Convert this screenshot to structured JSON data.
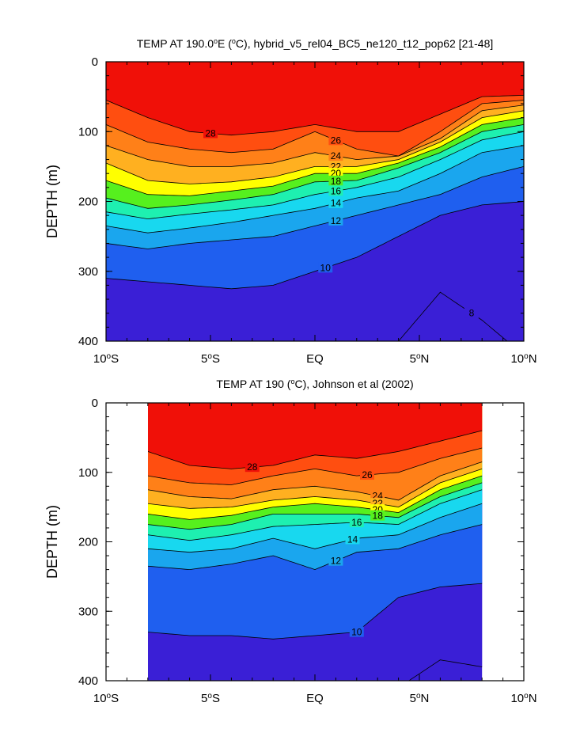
{
  "chart_data": [
    {
      "type": "heatmap",
      "title_parts": [
        "TEMP AT 190.0",
        "o",
        "E (",
        "o",
        "C), hybrid_v5_rel04_BC5_ne120_t12_pop62 [21-48]"
      ],
      "ylabel": "DEPTH (m)",
      "xlim": [
        -10,
        10
      ],
      "ylim": [
        400,
        0
      ],
      "data_xlim": [
        -10,
        10
      ],
      "y_ticks": [
        0,
        100,
        200,
        300,
        400
      ],
      "x_ticks": [
        {
          "value": -10,
          "parts": [
            "10",
            "o",
            "S"
          ]
        },
        {
          "value": -5,
          "parts": [
            "5",
            "o",
            "S"
          ]
        },
        {
          "value": 0,
          "parts": [
            "EQ",
            "",
            ""
          ]
        },
        {
          "value": 5,
          "parts": [
            "5",
            "o",
            "N"
          ]
        },
        {
          "value": 10,
          "parts": [
            "10",
            "o",
            "N"
          ]
        }
      ],
      "x": [
        -10,
        -8,
        -6,
        -4,
        -2,
        0,
        2,
        4,
        6,
        8,
        10
      ],
      "isotherm_depths": [
        {
          "level": 28,
          "depths": [
            55,
            80,
            100,
            105,
            100,
            90,
            100,
            100,
            75,
            50,
            48
          ],
          "label": "28",
          "label_x": -5
        },
        {
          "level": 26,
          "depths": [
            90,
            115,
            125,
            130,
            125,
            100,
            125,
            135,
            100,
            60,
            55
          ],
          "label": "26",
          "label_x": 1
        },
        {
          "level": 24,
          "depths": [
            120,
            140,
            150,
            150,
            145,
            130,
            140,
            135,
            110,
            70,
            62
          ],
          "label": "24",
          "label_x": 1
        },
        {
          "level": 22,
          "depths": [
            145,
            170,
            175,
            172,
            165,
            150,
            150,
            140,
            115,
            80,
            70
          ],
          "label": "22",
          "label_x": 1
        },
        {
          "level": 20,
          "depths": [
            170,
            190,
            192,
            185,
            178,
            160,
            160,
            145,
            122,
            90,
            80
          ],
          "label": "20",
          "label_x": 1
        },
        {
          "level": 18,
          "depths": [
            195,
            210,
            205,
            198,
            190,
            172,
            170,
            152,
            130,
            100,
            90
          ],
          "label": "18",
          "label_x": 1
        },
        {
          "level": 16,
          "depths": [
            215,
            225,
            218,
            212,
            205,
            190,
            180,
            165,
            140,
            112,
            100
          ],
          "label": "16",
          "label_x": 1
        },
        {
          "level": 14,
          "depths": [
            235,
            245,
            238,
            230,
            220,
            210,
            195,
            185,
            160,
            130,
            120
          ],
          "label": "14",
          "label_x": 1
        },
        {
          "level": 12,
          "depths": [
            260,
            268,
            260,
            255,
            250,
            235,
            220,
            205,
            190,
            165,
            150
          ],
          "label": "12",
          "label_x": 1
        },
        {
          "level": 10,
          "depths": [
            310,
            315,
            320,
            325,
            320,
            300,
            280,
            250,
            220,
            205,
            200
          ],
          "label": "10",
          "label_x": 0.5
        },
        {
          "level": 8,
          "depths": [
            420,
            420,
            420,
            420,
            420,
            420,
            420,
            400,
            330,
            370,
            420
          ],
          "label": "8",
          "label_x": 7.5
        }
      ],
      "levels": [
        8,
        9,
        10,
        11,
        12,
        13,
        14,
        15,
        16,
        17,
        18,
        19,
        20,
        21,
        22,
        23,
        24,
        25,
        26,
        27,
        28,
        29
      ]
    },
    {
      "type": "heatmap",
      "title_parts": [
        "TEMP AT 190 (",
        "o",
        "C), Johnson et al (2002)"
      ],
      "ylabel": "DEPTH (m)",
      "xlim": [
        -10,
        10
      ],
      "ylim": [
        400,
        0
      ],
      "data_xlim": [
        -8,
        8
      ],
      "y_ticks": [
        0,
        100,
        200,
        300,
        400
      ],
      "x_ticks": [
        {
          "value": -10,
          "parts": [
            "10",
            "o",
            "S"
          ]
        },
        {
          "value": -5,
          "parts": [
            "5",
            "o",
            "S"
          ]
        },
        {
          "value": 0,
          "parts": [
            "EQ",
            "",
            ""
          ]
        },
        {
          "value": 5,
          "parts": [
            "5",
            "o",
            "N"
          ]
        },
        {
          "value": 10,
          "parts": [
            "10",
            "o",
            "N"
          ]
        }
      ],
      "x": [
        -8,
        -6,
        -4,
        -2,
        0,
        2,
        4,
        6,
        8
      ],
      "isotherm_depths": [
        {
          "level": 28,
          "depths": [
            70,
            90,
            95,
            90,
            75,
            80,
            70,
            55,
            40
          ],
          "label": "28",
          "label_x": -3
        },
        {
          "level": 26,
          "depths": [
            105,
            115,
            118,
            105,
            95,
            105,
            100,
            80,
            65
          ],
          "label": "26",
          "label_x": 2.5
        },
        {
          "level": 24,
          "depths": [
            125,
            135,
            138,
            125,
            120,
            128,
            140,
            105,
            85
          ],
          "label": "24",
          "label_x": 3
        },
        {
          "level": 22,
          "depths": [
            145,
            152,
            150,
            140,
            135,
            140,
            150,
            115,
            95
          ],
          "label": "22",
          "label_x": 3
        },
        {
          "level": 20,
          "depths": [
            160,
            168,
            162,
            150,
            145,
            150,
            158,
            125,
            105
          ],
          "label": "20",
          "label_x": 3
        },
        {
          "level": 18,
          "depths": [
            175,
            182,
            175,
            160,
            160,
            160,
            165,
            135,
            115
          ],
          "label": "18",
          "label_x": 3
        },
        {
          "level": 16,
          "depths": [
            190,
            198,
            190,
            178,
            175,
            172,
            175,
            145,
            125
          ],
          "label": "16",
          "label_x": 2
        },
        {
          "level": 14,
          "depths": [
            210,
            215,
            210,
            195,
            210,
            195,
            190,
            165,
            145
          ],
          "label": "14",
          "label_x": 1.8
        },
        {
          "level": 12,
          "depths": [
            235,
            240,
            232,
            220,
            240,
            215,
            210,
            190,
            175
          ],
          "label": "12",
          "label_x": 1
        },
        {
          "level": 10,
          "depths": [
            330,
            335,
            335,
            340,
            335,
            330,
            280,
            265,
            260
          ],
          "label": "10",
          "label_x": 2
        },
        {
          "level": 8,
          "depths": [
            420,
            420,
            420,
            420,
            420,
            420,
            410,
            370,
            380
          ],
          "label": "",
          "label_x": 6
        }
      ],
      "levels": [
        8,
        9,
        10,
        11,
        12,
        13,
        14,
        15,
        16,
        17,
        18,
        19,
        20,
        21,
        22,
        23,
        24,
        25,
        26,
        27,
        28,
        29
      ]
    }
  ],
  "colors": {
    "palette": [
      "#3a1fd6",
      "#1f2fef",
      "#1f5fef",
      "#1f86ef",
      "#1aa6ee",
      "#10c0f0",
      "#18d8ef",
      "#28e8e0",
      "#1ef0b0",
      "#20e860",
      "#56f01e",
      "#b8f020",
      "#ffff00",
      "#ffd020",
      "#ffb020",
      "#ff9a1a",
      "#ff8018",
      "#ff6a14",
      "#ff4e10",
      "#ff3010",
      "#f01008",
      "#d80000"
    ]
  }
}
